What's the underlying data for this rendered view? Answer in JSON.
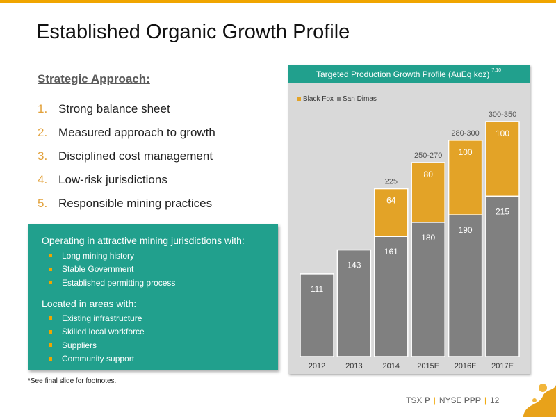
{
  "slide": {
    "title": "Established Organic Growth Profile",
    "approach_heading": "Strategic Approach:",
    "approach_items": [
      {
        "num": "1.",
        "label": "Strong balance sheet"
      },
      {
        "num": "2.",
        "label": "Measured approach to growth"
      },
      {
        "num": "3.",
        "label": "Disciplined cost management"
      },
      {
        "num": "4.",
        "label": "Low-risk jurisdictions"
      },
      {
        "num": "5.",
        "label": "Responsible mining practices"
      }
    ],
    "box": {
      "heading1": "Operating in attractive mining jurisdictions with:",
      "list1": [
        "Long mining history",
        "Stable Government",
        "Established permitting process"
      ],
      "heading2": "Located in areas with:",
      "list2": [
        "Existing infrastructure",
        "Skilled local workforce",
        "Suppliers",
        "Community support"
      ]
    },
    "footnote": "*See final slide for footnotes.",
    "footer": {
      "tsx_label": "TSX",
      "tsx_code": "P",
      "nyse_label": "NYSE",
      "nyse_code": "PPP",
      "page": "12"
    }
  },
  "colors": {
    "accent": "#f0a500",
    "teal": "#21a08d",
    "gray_bar": "#808080",
    "gold_bar": "#e3a327",
    "panel": "#d9d9d9"
  },
  "chart_data": {
    "type": "bar",
    "stacked": true,
    "title": "Targeted Production Growth Profile (AuEq koz)",
    "title_superscript": "7,10",
    "categories": [
      "2012",
      "2013",
      "2014",
      "2015E",
      "2016E",
      "2017E"
    ],
    "series": [
      {
        "name": "San Dimas",
        "color": "#808080",
        "values": [
          111,
          143,
          161,
          180,
          190,
          215
        ]
      },
      {
        "name": "Black Fox",
        "color": "#e3a327",
        "values": [
          null,
          null,
          64,
          80,
          100,
          100
        ]
      }
    ],
    "totals": [
      "",
      "",
      "225",
      "250-270",
      "280-300",
      "300-350"
    ],
    "legend": [
      "Black Fox",
      "San Dimas"
    ],
    "legend_position": "top-left",
    "ylim": [
      0,
      315
    ],
    "grid": false
  }
}
